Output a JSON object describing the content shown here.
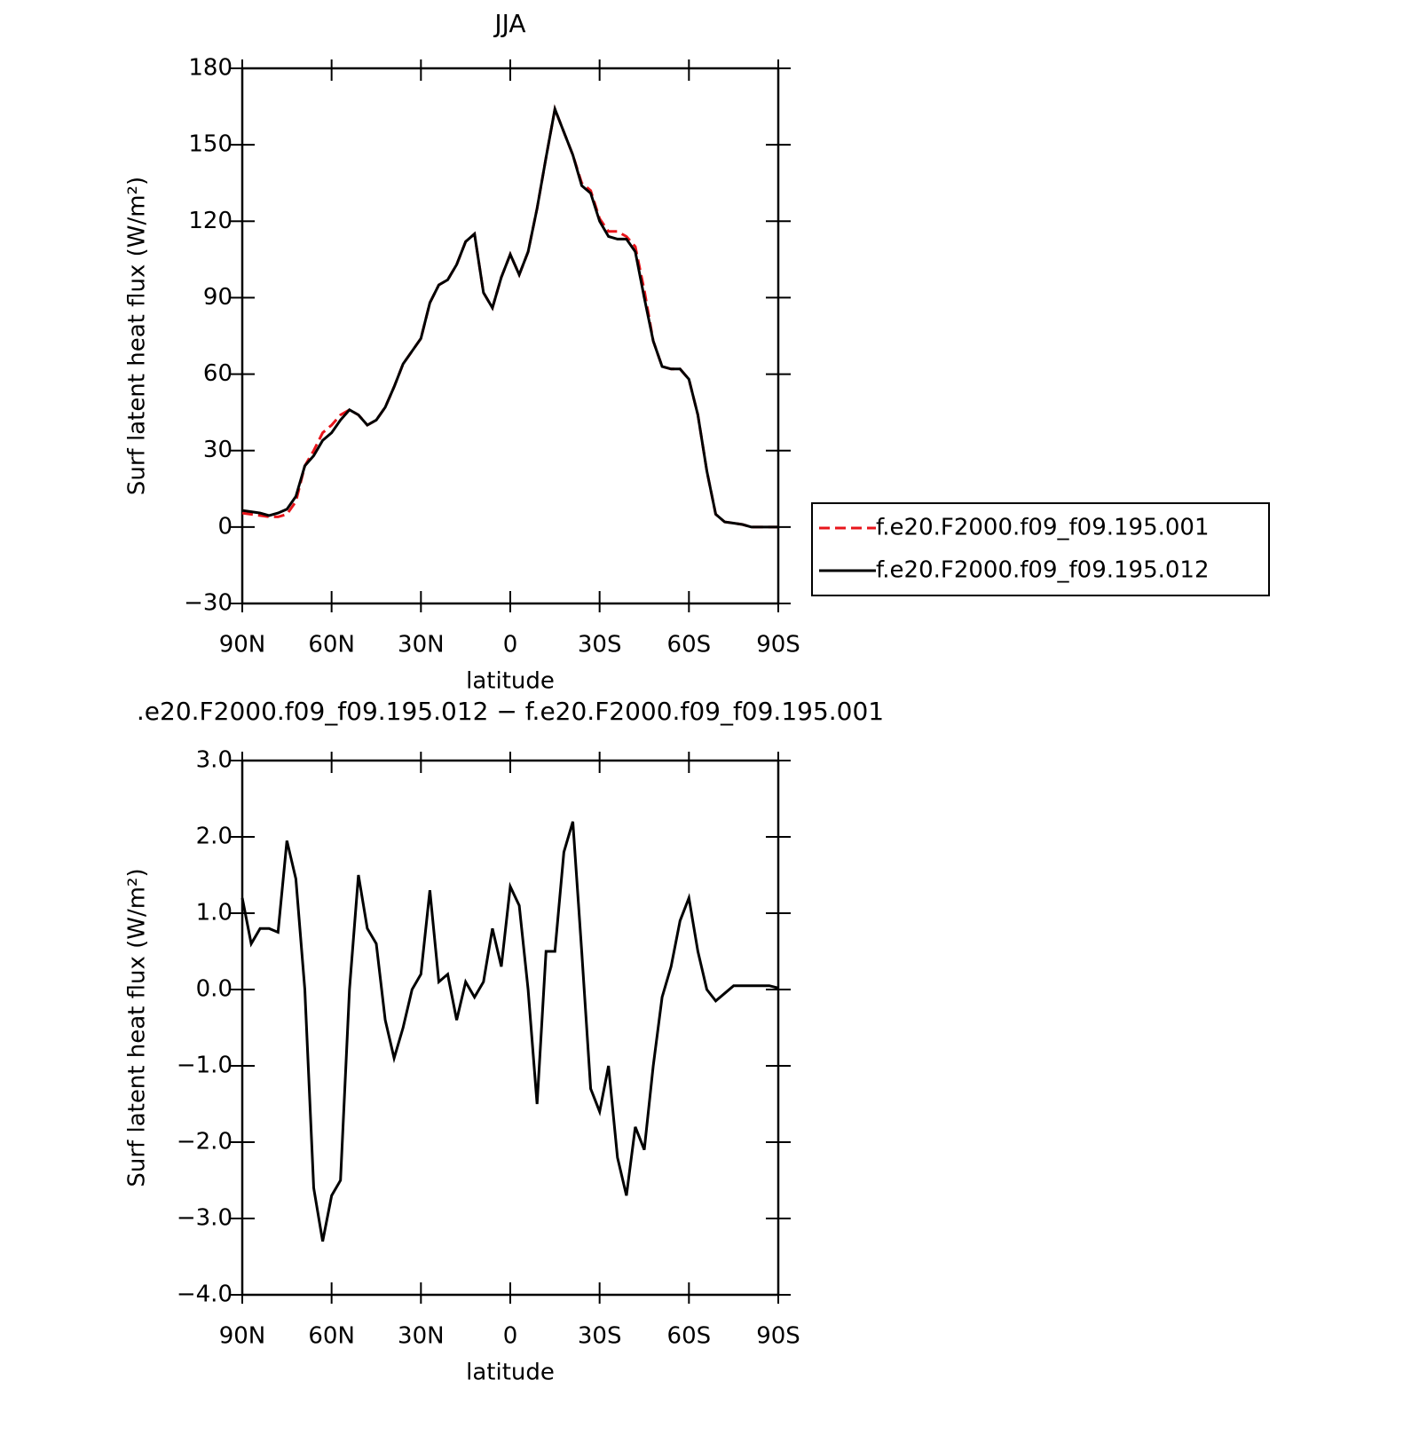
{
  "chart_data": [
    {
      "type": "line",
      "title": "JJA",
      "xlabel": "latitude",
      "ylabel": "Surf latent heat flux (W/m²)",
      "x": [
        90,
        87,
        84,
        81,
        78,
        75,
        72,
        69,
        66,
        63,
        60,
        57,
        54,
        51,
        48,
        45,
        42,
        39,
        36,
        33,
        30,
        27,
        24,
        21,
        18,
        15,
        12,
        9,
        6,
        3,
        0,
        -3,
        -6,
        -9,
        -12,
        -15,
        -18,
        -21,
        -24,
        -27,
        -30,
        -33,
        -36,
        -39,
        -42,
        -45,
        -48,
        -51,
        -54,
        -57,
        -60,
        -63,
        -66,
        -69,
        -72,
        -75,
        -78,
        -81,
        -84,
        -87,
        -90
      ],
      "series": [
        {
          "name": "f.e20.F2000.f09_f09.195.001",
          "color": "#e8151b",
          "line_style": "dashed",
          "values": [
            5.5,
            5,
            4.5,
            4,
            4,
            5,
            10,
            24,
            30,
            37,
            40,
            44,
            46,
            44,
            40,
            42,
            47,
            55,
            64,
            69,
            74,
            88,
            95,
            97,
            103,
            112,
            115,
            92,
            86,
            98,
            107,
            99,
            108,
            125,
            145,
            164,
            155,
            146,
            135,
            132,
            121,
            116,
            116,
            114,
            110,
            93,
            73,
            63,
            62,
            62,
            58,
            44,
            22,
            5,
            2,
            1.5,
            1,
            0,
            0,
            0,
            0
          ]
        },
        {
          "name": "f.e20.F2000.f09_f09.195.012",
          "color": "#000000",
          "line_style": "solid",
          "values": [
            6.5,
            6,
            5.5,
            4.5,
            5.5,
            7,
            12,
            24,
            28,
            34,
            37,
            42,
            46,
            44,
            40,
            42,
            47,
            55,
            64,
            69,
            74,
            88,
            95,
            97,
            103,
            112,
            115,
            92,
            86,
            98,
            107,
            99,
            108,
            125,
            145,
            164,
            155,
            146,
            134,
            131,
            120,
            114,
            113,
            113,
            108,
            90,
            73,
            63,
            62,
            62,
            58,
            44,
            22,
            5,
            2,
            1.5,
            1,
            0,
            0,
            0,
            0
          ]
        }
      ],
      "xlim": [
        90,
        -90
      ],
      "xticks": [
        {
          "value": 90,
          "label": "90N"
        },
        {
          "value": 60,
          "label": "60N"
        },
        {
          "value": 30,
          "label": "30N"
        },
        0,
        {
          "value": -30,
          "label": "30S"
        },
        {
          "value": -60,
          "label": "60S"
        },
        {
          "value": -90,
          "label": "90S"
        }
      ],
      "ylim": [
        -30,
        180
      ],
      "yticks": [
        {
          "value": -30,
          "label": "−30"
        },
        0,
        30,
        60,
        90,
        120,
        150,
        180
      ],
      "legend": "outside-right"
    },
    {
      "type": "line",
      "title": ".e20.F2000.f09_f09.195.012 − f.e20.F2000.f09_f09.195.001",
      "xlabel": "latitude",
      "ylabel": "Surf latent heat flux (W/m²)",
      "x": [
        90,
        87,
        84,
        81,
        78,
        75,
        72,
        69,
        66,
        63,
        60,
        57,
        54,
        51,
        48,
        45,
        42,
        39,
        36,
        33,
        30,
        27,
        24,
        21,
        18,
        15,
        12,
        9,
        6,
        3,
        0,
        -3,
        -6,
        -9,
        -12,
        -15,
        -18,
        -21,
        -24,
        -27,
        -30,
        -33,
        -36,
        -39,
        -42,
        -45,
        -48,
        -51,
        -54,
        -57,
        -60,
        -63,
        -66,
        -69,
        -72,
        -75,
        -78,
        -81,
        -84,
        -87,
        -90
      ],
      "values": [
        1.2,
        0.6,
        0.8,
        0.8,
        0.75,
        1.95,
        1.45,
        0.0,
        -2.6,
        -3.3,
        -2.7,
        -2.5,
        0.0,
        1.5,
        0.8,
        0.6,
        -0.4,
        -0.9,
        -0.5,
        0.0,
        0.2,
        1.3,
        0.1,
        0.2,
        -0.4,
        0.1,
        -0.1,
        0.1,
        0.8,
        0.3,
        1.35,
        1.1,
        0.0,
        -1.5,
        0.5,
        0.5,
        1.8,
        2.2,
        0.5,
        -1.3,
        -1.6,
        -1.0,
        -2.2,
        -2.7,
        -1.8,
        -2.1,
        -1.0,
        -0.1,
        0.3,
        0.9,
        1.2,
        0.5,
        0.0,
        -0.15,
        -0.05,
        0.05,
        0.05,
        0.05,
        0.05,
        0.05,
        0.02
      ],
      "color": "#000000",
      "xlim": [
        90,
        -90
      ],
      "xticks": [
        {
          "value": 90,
          "label": "90N"
        },
        {
          "value": 60,
          "label": "60N"
        },
        {
          "value": 30,
          "label": "30N"
        },
        0,
        {
          "value": -30,
          "label": "30S"
        },
        {
          "value": -60,
          "label": "60S"
        },
        {
          "value": -90,
          "label": "90S"
        }
      ],
      "ylim": [
        -4,
        3
      ],
      "yticks": [
        {
          "value": -4,
          "label": "−4.0"
        },
        {
          "value": -3,
          "label": "−3.0"
        },
        {
          "value": -2,
          "label": "−2.0"
        },
        {
          "value": -1,
          "label": "−1.0"
        },
        {
          "value": 0,
          "label": "0.0"
        },
        {
          "value": 1,
          "label": "1.0"
        },
        {
          "value": 2,
          "label": "2.0"
        },
        {
          "value": 3,
          "label": "3.0"
        }
      ]
    }
  ]
}
